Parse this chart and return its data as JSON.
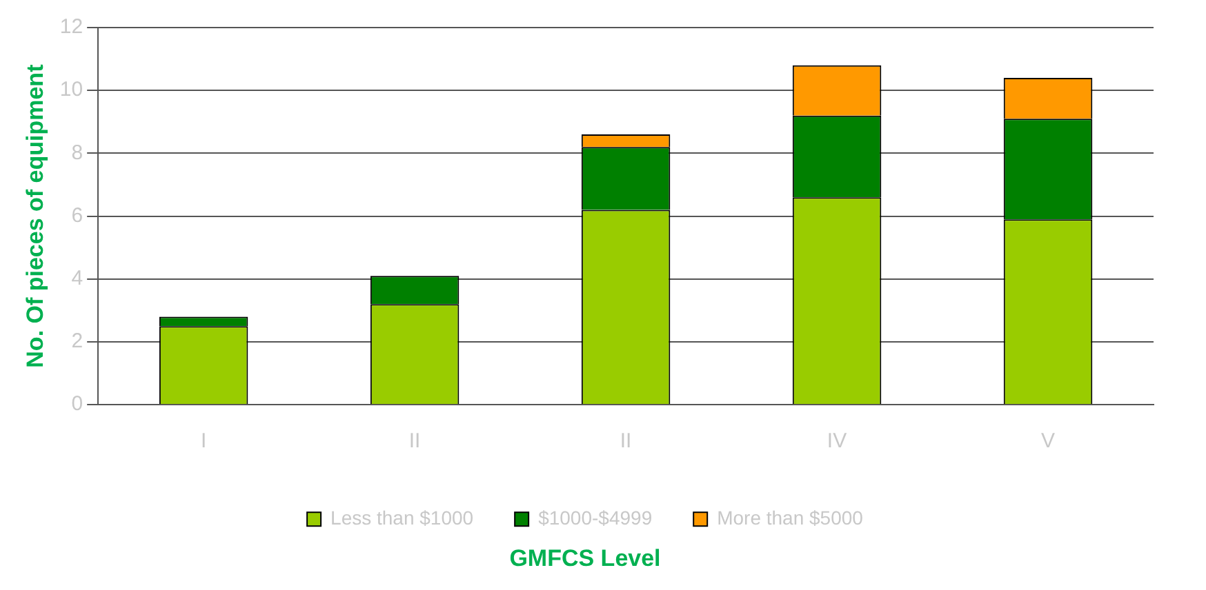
{
  "chart_data": {
    "type": "bar",
    "stacked": true,
    "xlabel": "GMFCS Level",
    "ylabel": "No. Of pieces of equipment",
    "categories": [
      "I",
      "II",
      "II",
      "IV",
      "V"
    ],
    "series": [
      {
        "name": "Less than $1000",
        "color": "#99cc00",
        "values": [
          2.5,
          3.2,
          6.2,
          6.6,
          5.9
        ]
      },
      {
        "name": "$1000-$4999",
        "color": "#008000",
        "values": [
          0.3,
          0.9,
          2.0,
          2.6,
          3.2
        ]
      },
      {
        "name": "More than $5000",
        "color": "#ff9900",
        "values": [
          0,
          0,
          0.4,
          1.6,
          1.3
        ]
      }
    ],
    "ylim": [
      0,
      12
    ],
    "yticks": [
      0,
      2,
      4,
      6,
      8,
      10,
      12
    ],
    "grid": "y",
    "legend": "bottom"
  }
}
